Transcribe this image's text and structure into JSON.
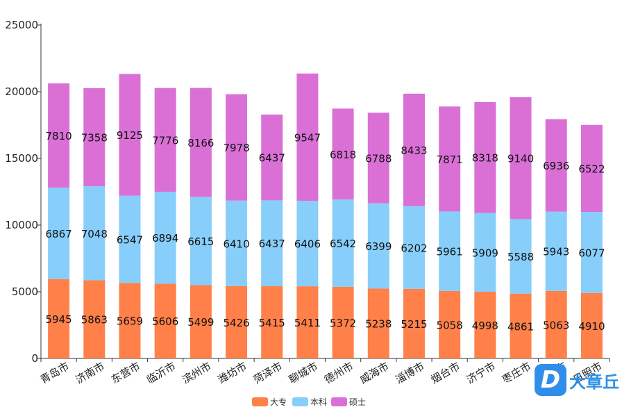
{
  "chart_data": {
    "type": "bar",
    "stacked": true,
    "categories": [
      "青岛市",
      "济南市",
      "东营市",
      "临沂市",
      "滨州市",
      "潍坊市",
      "菏泽市",
      "聊城市",
      "德州市",
      "威海市",
      "淄博市",
      "烟台市",
      "济宁市",
      "枣庄市",
      "泰安市",
      "日照市"
    ],
    "series": [
      {
        "name": "大专",
        "color": "#ff8049",
        "values": [
          5945,
          5863,
          5659,
          5606,
          5499,
          5426,
          5415,
          5411,
          5372,
          5238,
          5215,
          5058,
          4998,
          4861,
          5063,
          4910
        ]
      },
      {
        "name": "本科",
        "color": "#87cefa",
        "values": [
          6867,
          7048,
          6547,
          6894,
          6615,
          6410,
          6437,
          6406,
          6542,
          6399,
          6202,
          5961,
          5909,
          5588,
          5943,
          6077
        ]
      },
      {
        "name": "硕士",
        "color": "#da70d6",
        "values": [
          7810,
          7358,
          9125,
          7776,
          8166,
          7978,
          6437,
          9547,
          6818,
          6788,
          8433,
          7871,
          8318,
          9140,
          6936,
          6522
        ]
      }
    ],
    "yticks": [
      0,
      5000,
      10000,
      15000,
      20000,
      25000
    ],
    "ylim": [
      0,
      25000
    ],
    "legend_position": "bottom-center"
  },
  "watermark": {
    "mark": "D",
    "text": "大章丘"
  }
}
